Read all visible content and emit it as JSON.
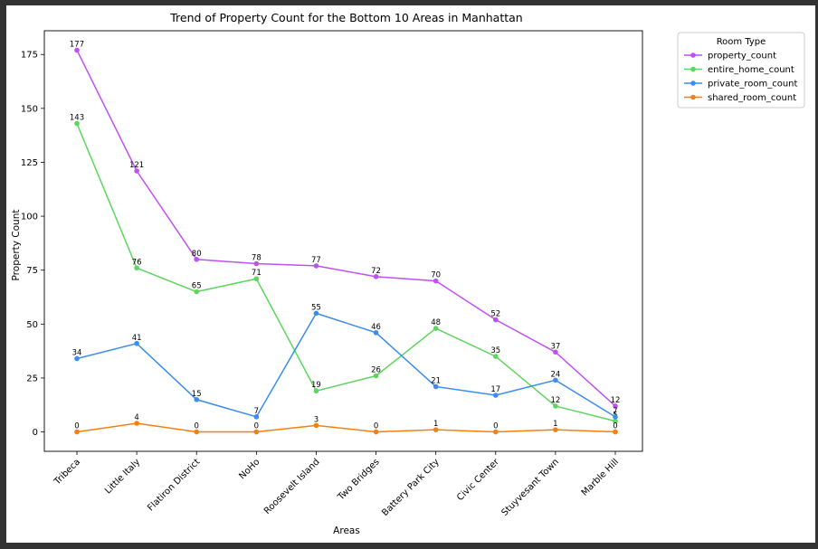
{
  "chart_data": {
    "type": "line",
    "title": "Trend of Property Count for the Bottom 10 Areas in Manhattan",
    "xlabel": "Areas",
    "ylabel": "Property Count",
    "ylim": [
      -9,
      186
    ],
    "yticks": [
      0,
      25,
      50,
      75,
      100,
      125,
      150,
      175
    ],
    "grid": false,
    "legend_position": "outside-top-right",
    "legend_title": "Room Type",
    "categories": [
      "Tribeca",
      "Little Italy",
      "Flatiron District",
      "NoHo",
      "Roosevelt Island",
      "Two Bridges",
      "Battery Park City",
      "Civic Center",
      "Stuyvesant Town",
      "Marble Hill"
    ],
    "series": [
      {
        "name": "property_count",
        "color": "#c050f5",
        "values": [
          177,
          121,
          80,
          78,
          77,
          72,
          70,
          52,
          37,
          12
        ]
      },
      {
        "name": "entire_home_count",
        "color": "#5cd65c",
        "values": [
          143,
          76,
          65,
          71,
          19,
          26,
          48,
          35,
          12,
          5
        ]
      },
      {
        "name": "private_room_count",
        "color": "#3a8cf0",
        "values": [
          34,
          41,
          15,
          7,
          55,
          46,
          21,
          17,
          24,
          7
        ]
      },
      {
        "name": "shared_room_count",
        "color": "#f77f0e",
        "values": [
          0,
          4,
          0,
          0,
          3,
          0,
          1,
          0,
          1,
          0
        ]
      }
    ]
  }
}
